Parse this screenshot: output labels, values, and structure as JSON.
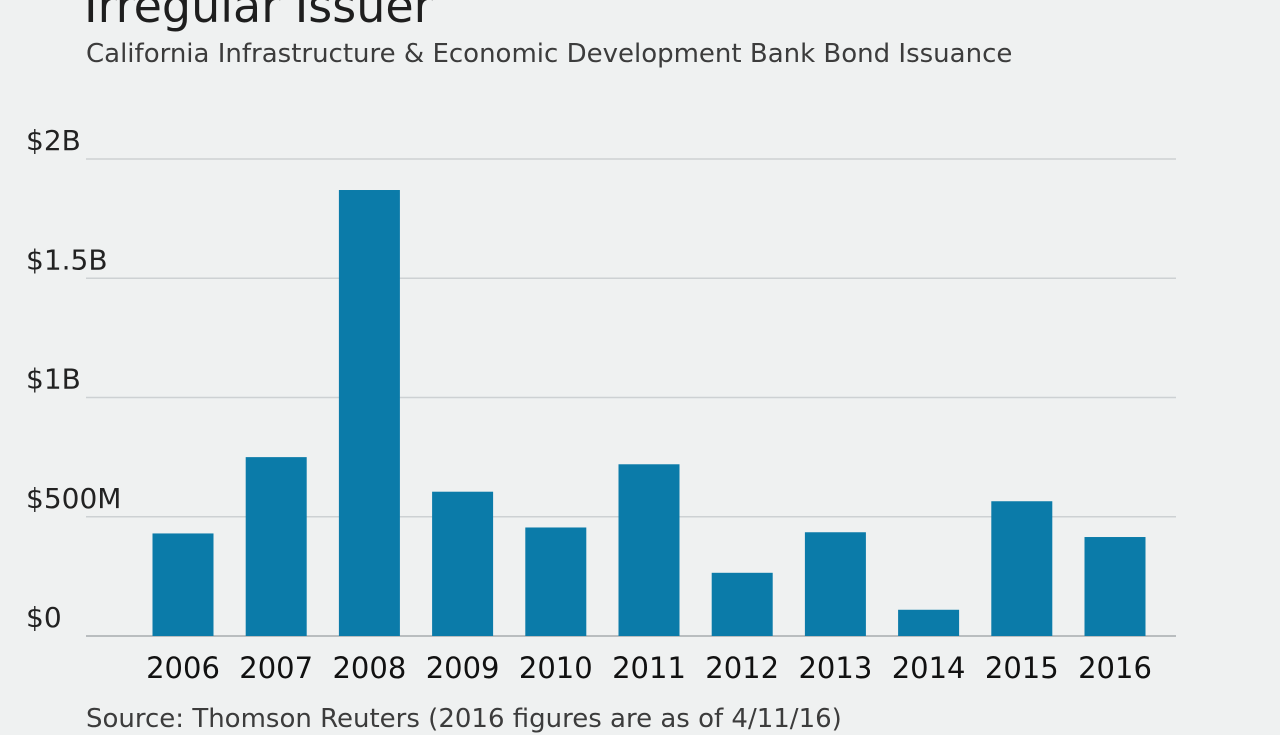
{
  "title": "Irregular Issuer",
  "subtitle": "California Infrastructure & Economic Development Bank Bond Issuance",
  "source": "Source: Thomson Reuters (2016 figures are as of 4/11/16)",
  "colors": {
    "bar": "#0b7ba9",
    "grid": "#cdd1d3",
    "background": "#eff1f1"
  },
  "chart_data": {
    "type": "bar",
    "title": "Irregular Issuer",
    "subtitle": "California Infrastructure & Economic Development Bank Bond Issuance",
    "categories": [
      "2006",
      "2007",
      "2008",
      "2009",
      "2010",
      "2011",
      "2012",
      "2013",
      "2014",
      "2015",
      "2016"
    ],
    "values": [
      430,
      750,
      1870,
      605,
      455,
      720,
      265,
      435,
      110,
      565,
      415
    ],
    "unit": "millions of dollars",
    "ylim": [
      0,
      2000
    ],
    "yticks": [
      0,
      500,
      1000,
      1500,
      2000
    ],
    "ytick_labels": [
      "$0",
      "$500M",
      "$1B",
      "$1.5B",
      "$2B"
    ],
    "xlabel": "",
    "ylabel": "",
    "grid": true,
    "legend": "none"
  }
}
